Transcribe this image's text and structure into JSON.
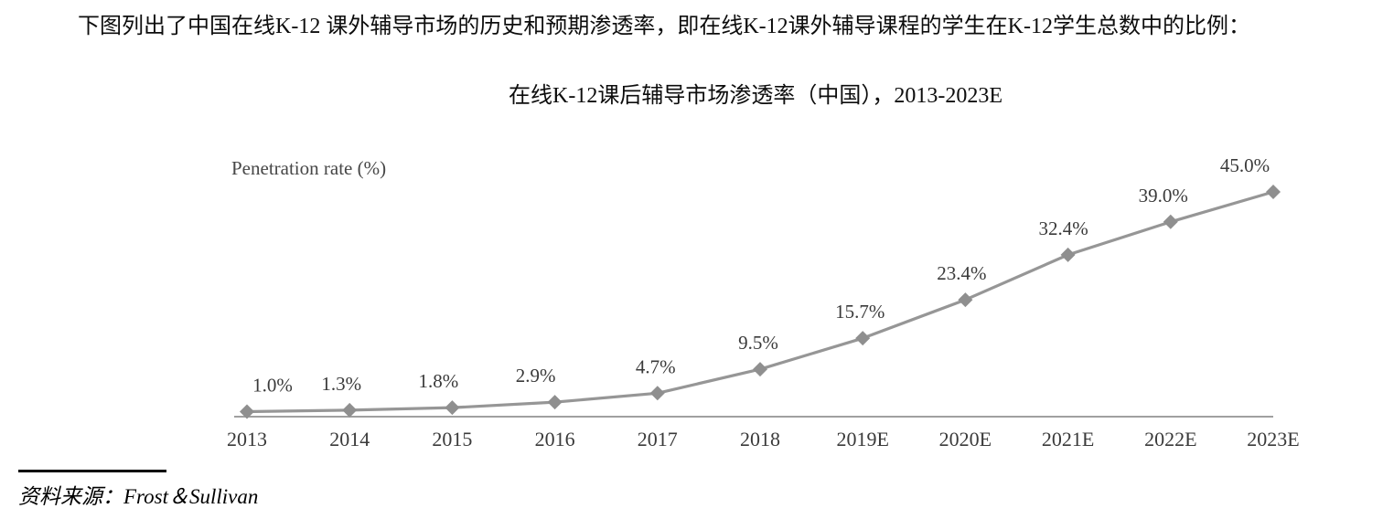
{
  "page": {
    "intro_text": "下图列出了中国在线K-12 课外辅导市场的历史和预期渗透率，即在线K-12课外辅导课程的学生在K-12学生总数中的比例：",
    "source_label": "资料来源：Frost＆Sullivan"
  },
  "chart_data": {
    "type": "line",
    "title": "在线K-12课后辅导市场渗透率（中国），2013-2023E",
    "ylabel": "Penetration rate (%)",
    "xlabel": "",
    "categories": [
      "2013",
      "2014",
      "2015",
      "2016",
      "2017",
      "2018",
      "2019E",
      "2020E",
      "2021E",
      "2022E",
      "2023E"
    ],
    "values": [
      1.0,
      1.3,
      1.8,
      2.9,
      4.7,
      9.5,
      15.7,
      23.4,
      32.4,
      39.0,
      45.0
    ],
    "data_labels": [
      "1.0%",
      "1.3%",
      "1.8%",
      "2.9%",
      "4.7%",
      "9.5%",
      "15.7%",
      "23.4%",
      "32.4%",
      "39.0%",
      "45.0%"
    ],
    "ylim": [
      0,
      50
    ],
    "grid": false,
    "legend_position": "none",
    "marker": "diamond",
    "line_color": "#969696",
    "marker_color": "#8f8f8f",
    "axis_color": "#a0a0a0",
    "label_color": "#3a3a3a",
    "tick_label_color": "#3a3a3a"
  }
}
